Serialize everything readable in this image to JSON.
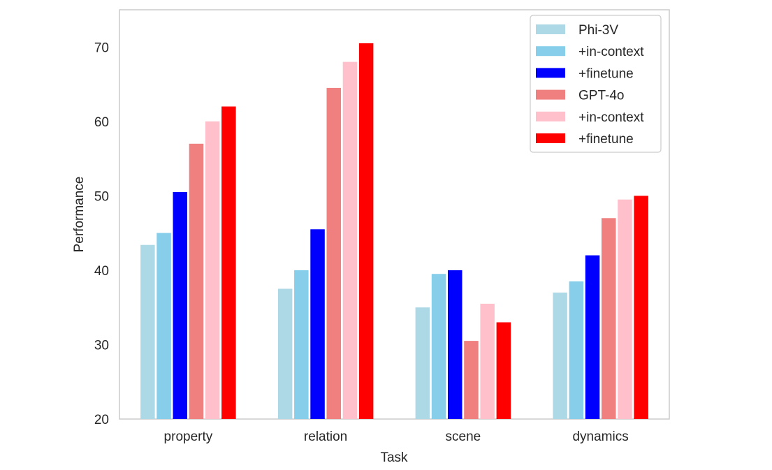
{
  "chart_data": {
    "type": "bar",
    "title": "",
    "xlabel": "Task",
    "ylabel": "Performance",
    "ylim": [
      20,
      75
    ],
    "yticks": [
      20,
      30,
      40,
      50,
      60,
      70
    ],
    "grid": false,
    "legend_position": "top-right",
    "categories": [
      "property",
      "relation",
      "scene",
      "dynamics"
    ],
    "series": [
      {
        "name": "Phi-3V",
        "color": "#add8e6",
        "values": [
          43.4,
          37.5,
          35.0,
          37.0
        ]
      },
      {
        "name": "+in-context",
        "color": "#87ceeb",
        "values": [
          45.0,
          40.0,
          39.5,
          38.5
        ]
      },
      {
        "name": "+finetune",
        "color": "#0000ff",
        "values": [
          50.5,
          45.5,
          40.0,
          42.0
        ]
      },
      {
        "name": "GPT-4o",
        "color": "#f08080",
        "values": [
          57.0,
          64.5,
          30.5,
          47.0
        ]
      },
      {
        "name": "+in-context",
        "color": "#ffc0cb",
        "values": [
          60.0,
          68.0,
          35.5,
          49.5
        ]
      },
      {
        "name": "+finetune",
        "color": "#ff0000",
        "values": [
          62.0,
          70.5,
          33.0,
          50.0
        ]
      }
    ]
  }
}
